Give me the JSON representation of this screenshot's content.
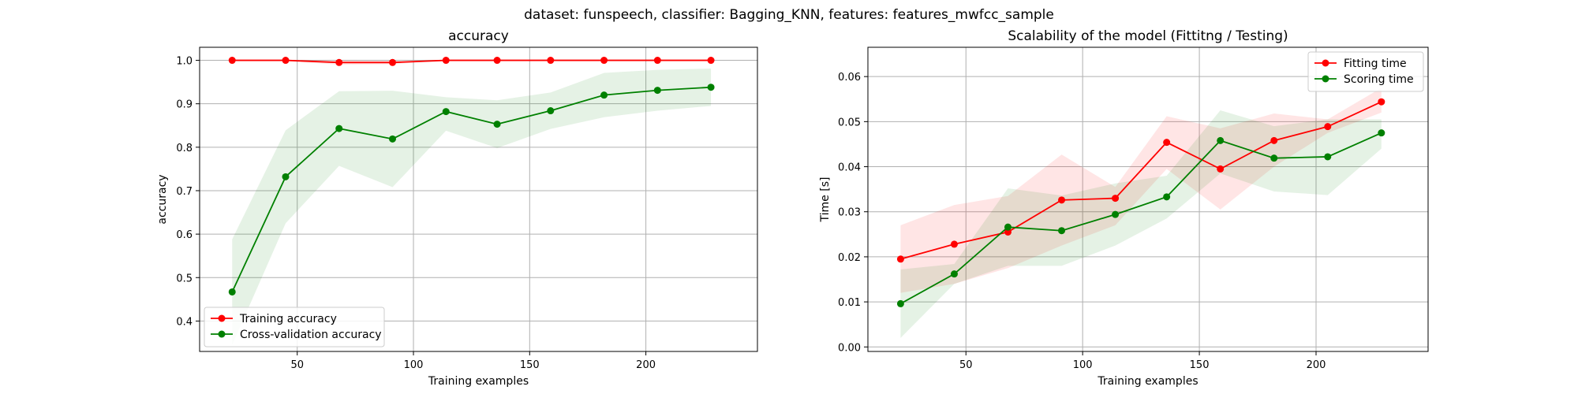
{
  "suptitle": "dataset: funspeech, classifier: Bagging_KNN, features: features_mwfcc_sample",
  "chart_data": [
    {
      "type": "line",
      "title": "accuracy",
      "xlabel": "Training examples",
      "ylabel": "accuracy",
      "xlim": [
        8,
        248
      ],
      "ylim": [
        0.33,
        1.03
      ],
      "xticks": [
        50,
        100,
        150,
        200
      ],
      "yticks": [
        0.4,
        0.5,
        0.6,
        0.7,
        0.8,
        0.9,
        1.0
      ],
      "ytick_labels": [
        "0.4",
        "0.5",
        "0.6",
        "0.7",
        "0.8",
        "0.9",
        "1.0"
      ],
      "grid": true,
      "legend_position": "lower-left",
      "x": [
        22,
        45,
        68,
        91,
        114,
        136,
        159,
        182,
        205,
        228
      ],
      "series": [
        {
          "name": "Training accuracy",
          "color": "#ff0000",
          "values": [
            1.0,
            1.0,
            0.995,
            0.995,
            1.0,
            1.0,
            1.0,
            1.0,
            1.0,
            1.0
          ],
          "band_lower": [
            1.0,
            0.998,
            0.99,
            0.991,
            1.0,
            1.0,
            1.0,
            1.0,
            1.0,
            1.0
          ],
          "band_upper": [
            1.0,
            1.0,
            1.0,
            0.999,
            1.0,
            1.0,
            1.0,
            1.0,
            1.0,
            1.0
          ]
        },
        {
          "name": "Cross-validation accuracy",
          "color": "#008000",
          "values": [
            0.467,
            0.732,
            0.843,
            0.819,
            0.882,
            0.853,
            0.884,
            0.92,
            0.931,
            0.938
          ],
          "band_lower": [
            0.345,
            0.625,
            0.757,
            0.708,
            0.838,
            0.798,
            0.842,
            0.869,
            0.884,
            0.895
          ],
          "band_upper": [
            0.588,
            0.839,
            0.929,
            0.93,
            0.915,
            0.908,
            0.926,
            0.971,
            0.978,
            0.981
          ]
        }
      ]
    },
    {
      "type": "line",
      "title": "Scalability of the model (Fittitng / Testing)",
      "xlabel": "Training examples",
      "ylabel": "Time [s]",
      "xlim": [
        8,
        248
      ],
      "ylim": [
        -0.001,
        0.0665
      ],
      "xticks": [
        50,
        100,
        150,
        200
      ],
      "yticks": [
        0.0,
        0.01,
        0.02,
        0.03,
        0.04,
        0.05,
        0.06
      ],
      "ytick_labels": [
        "0.00",
        "0.01",
        "0.02",
        "0.03",
        "0.04",
        "0.05",
        "0.06"
      ],
      "grid": true,
      "legend_position": "upper-right",
      "x": [
        22,
        45,
        68,
        91,
        114,
        136,
        159,
        182,
        205,
        228
      ],
      "series": [
        {
          "name": "Fitting time",
          "color": "#ff0000",
          "values": [
            0.0195,
            0.0228,
            0.0255,
            0.0326,
            0.033,
            0.0454,
            0.0395,
            0.0458,
            0.0489,
            0.0544
          ],
          "band_lower": [
            0.012,
            0.014,
            0.0175,
            0.0225,
            0.027,
            0.0395,
            0.0305,
            0.04,
            0.0475,
            0.052
          ],
          "band_upper": [
            0.027,
            0.0315,
            0.0335,
            0.0427,
            0.0355,
            0.0512,
            0.0485,
            0.0518,
            0.0505,
            0.0575
          ]
        },
        {
          "name": "Scoring time",
          "color": "#008000",
          "values": [
            0.0096,
            0.0162,
            0.0266,
            0.0258,
            0.0294,
            0.0333,
            0.0458,
            0.0419,
            0.0422,
            0.0475
          ],
          "band_lower": [
            0.002,
            0.014,
            0.018,
            0.018,
            0.0225,
            0.0285,
            0.0385,
            0.0345,
            0.0337,
            0.044
          ],
          "band_upper": [
            0.0172,
            0.0184,
            0.0352,
            0.0336,
            0.0363,
            0.038,
            0.0525,
            0.049,
            0.0505,
            0.0505
          ]
        }
      ]
    }
  ]
}
